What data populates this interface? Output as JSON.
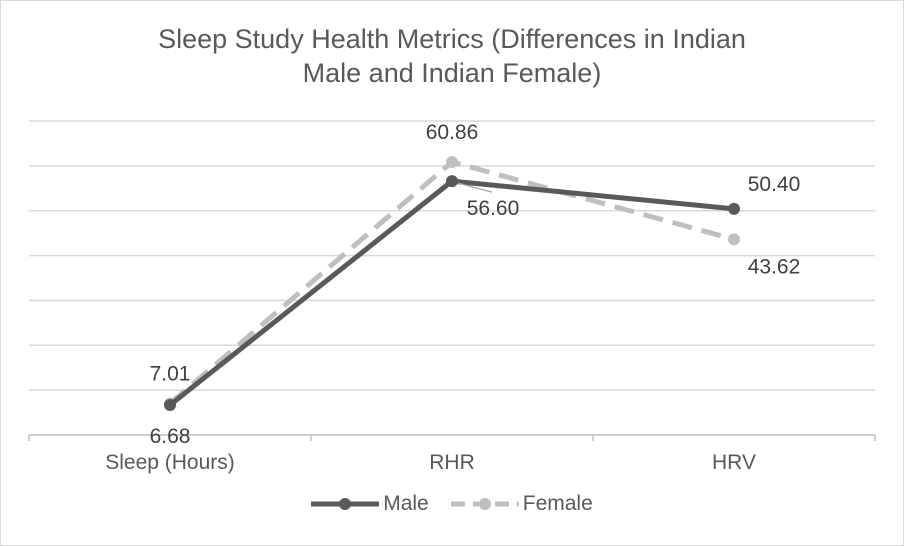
{
  "chart_data": {
    "type": "line",
    "title": "Sleep Study Health Metrics (Differences in Indian\nMale and Indian Female)",
    "categories": [
      "Sleep (Hours)",
      "RHR",
      "HRV"
    ],
    "series": [
      {
        "name": "Male",
        "values": [
          6.68,
          56.6,
          50.4
        ],
        "labels": [
          "6.68",
          "56.60",
          "50.40"
        ],
        "color": "#595959",
        "style": "solid"
      },
      {
        "name": "Female",
        "values": [
          7.01,
          60.86,
          43.62
        ],
        "labels": [
          "7.01",
          "60.86",
          "43.62"
        ],
        "color": "#bfbfbf",
        "style": "dashed"
      }
    ],
    "ylim": [
      0,
      70
    ],
    "y_axis_labels_shown": false,
    "grid": true,
    "legend_position": "bottom"
  }
}
